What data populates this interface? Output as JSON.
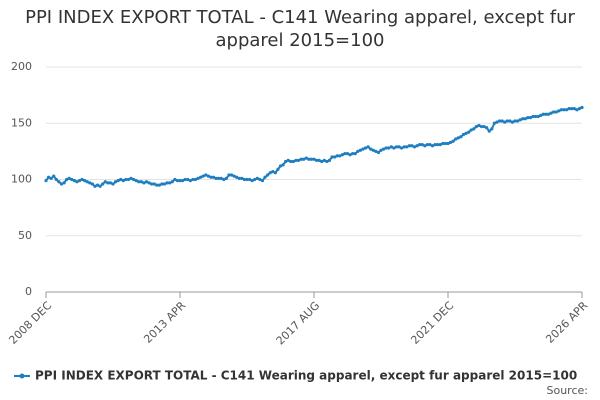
{
  "chart_data": {
    "type": "line",
    "title": "PPI INDEX EXPORT TOTAL - C141 Wearing apparel, except fur apparel 2015=100",
    "source": "Source:",
    "categories": [
      "2008 DEC",
      null,
      null,
      null,
      null,
      null,
      null,
      null,
      null,
      null,
      null,
      null,
      null,
      null,
      null,
      null,
      null,
      null,
      null,
      null,
      null,
      null,
      null,
      null,
      null,
      null,
      null,
      null,
      null,
      null,
      null,
      null,
      null,
      null,
      null,
      null,
      null,
      null,
      null,
      null,
      null,
      null,
      null,
      null,
      null,
      null,
      null,
      null,
      null,
      null,
      null,
      null,
      "2013 APR",
      null,
      null,
      null,
      null,
      null,
      null,
      null,
      null,
      null,
      null,
      null,
      null,
      null,
      null,
      null,
      null,
      null,
      null,
      null,
      null,
      null,
      null,
      null,
      null,
      null,
      null,
      null,
      null,
      null,
      null,
      null,
      null,
      null,
      null,
      null,
      null,
      null,
      null,
      null,
      null,
      null,
      null,
      null,
      null,
      null,
      null,
      null,
      null,
      null,
      null,
      null,
      "2017 AUG",
      null,
      null,
      null,
      null,
      null,
      null,
      null,
      null,
      null,
      null,
      null,
      null,
      null,
      null,
      null,
      null,
      null,
      null,
      null,
      null,
      null,
      null,
      null,
      null,
      null,
      null,
      null,
      null,
      null,
      null,
      null,
      null,
      null,
      null,
      null,
      null,
      null,
      null,
      null,
      null,
      null,
      null,
      null,
      null,
      null,
      null,
      null,
      null,
      null,
      null,
      null,
      "2021 DEC",
      null,
      null,
      null,
      null,
      null,
      null,
      null,
      null,
      null,
      null,
      null,
      null,
      null,
      null,
      null,
      null,
      null,
      null,
      null,
      null,
      null,
      null,
      null,
      null,
      null,
      null,
      null,
      null,
      null,
      null,
      null,
      null,
      null,
      null,
      null,
      null,
      null,
      null,
      null,
      null,
      null,
      null,
      null,
      null,
      null,
      null,
      null,
      null,
      null,
      null,
      null,
      "2026 APR"
    ],
    "series": [
      {
        "name": "PPI INDEX EXPORT TOTAL - C141 Wearing apparel, except fur apparel 2015=100",
        "color": "#1f7ec0",
        "values": [
          99,
          102,
          101,
          103,
          100,
          98,
          96,
          97,
          100,
          101,
          100,
          99,
          98,
          99,
          100,
          99,
          98,
          97,
          96,
          94,
          95,
          94,
          96,
          98,
          97,
          97,
          96,
          98,
          99,
          100,
          99,
          100,
          100,
          101,
          100,
          99,
          98,
          98,
          97,
          98,
          97,
          96,
          96,
          95,
          95,
          96,
          96,
          97,
          97,
          98,
          100,
          99,
          99,
          99,
          100,
          100,
          99,
          100,
          100,
          101,
          102,
          103,
          104,
          103,
          102,
          102,
          101,
          101,
          101,
          100,
          101,
          104,
          104,
          103,
          102,
          101,
          101,
          100,
          100,
          100,
          99,
          100,
          101,
          100,
          99,
          102,
          104,
          106,
          107,
          106,
          109,
          112,
          113,
          116,
          117,
          116,
          116,
          117,
          117,
          118,
          118,
          119,
          118,
          118,
          118,
          117,
          117,
          116,
          117,
          116,
          117,
          120,
          120,
          121,
          121,
          122,
          123,
          123,
          122,
          123,
          123,
          125,
          126,
          127,
          128,
          129,
          127,
          126,
          125,
          124,
          126,
          127,
          128,
          128,
          129,
          128,
          129,
          129,
          128,
          129,
          129,
          130,
          130,
          129,
          130,
          131,
          131,
          130,
          131,
          131,
          130,
          131,
          131,
          131,
          132,
          132,
          132,
          133,
          134,
          136,
          137,
          138,
          140,
          141,
          142,
          144,
          145,
          147,
          148,
          147,
          147,
          146,
          143,
          145,
          150,
          151,
          152,
          152,
          151,
          152,
          152,
          151,
          152,
          152,
          153,
          154,
          154,
          155,
          155,
          156,
          156,
          156,
          157,
          158,
          158,
          158,
          159,
          160,
          160,
          161,
          162,
          162,
          162,
          163,
          163,
          163,
          162,
          163,
          164
        ]
      }
    ],
    "ylim": [
      0,
      200
    ],
    "yticks": [
      0,
      50,
      100,
      150,
      200
    ],
    "grid": true,
    "legend": "bottom"
  }
}
